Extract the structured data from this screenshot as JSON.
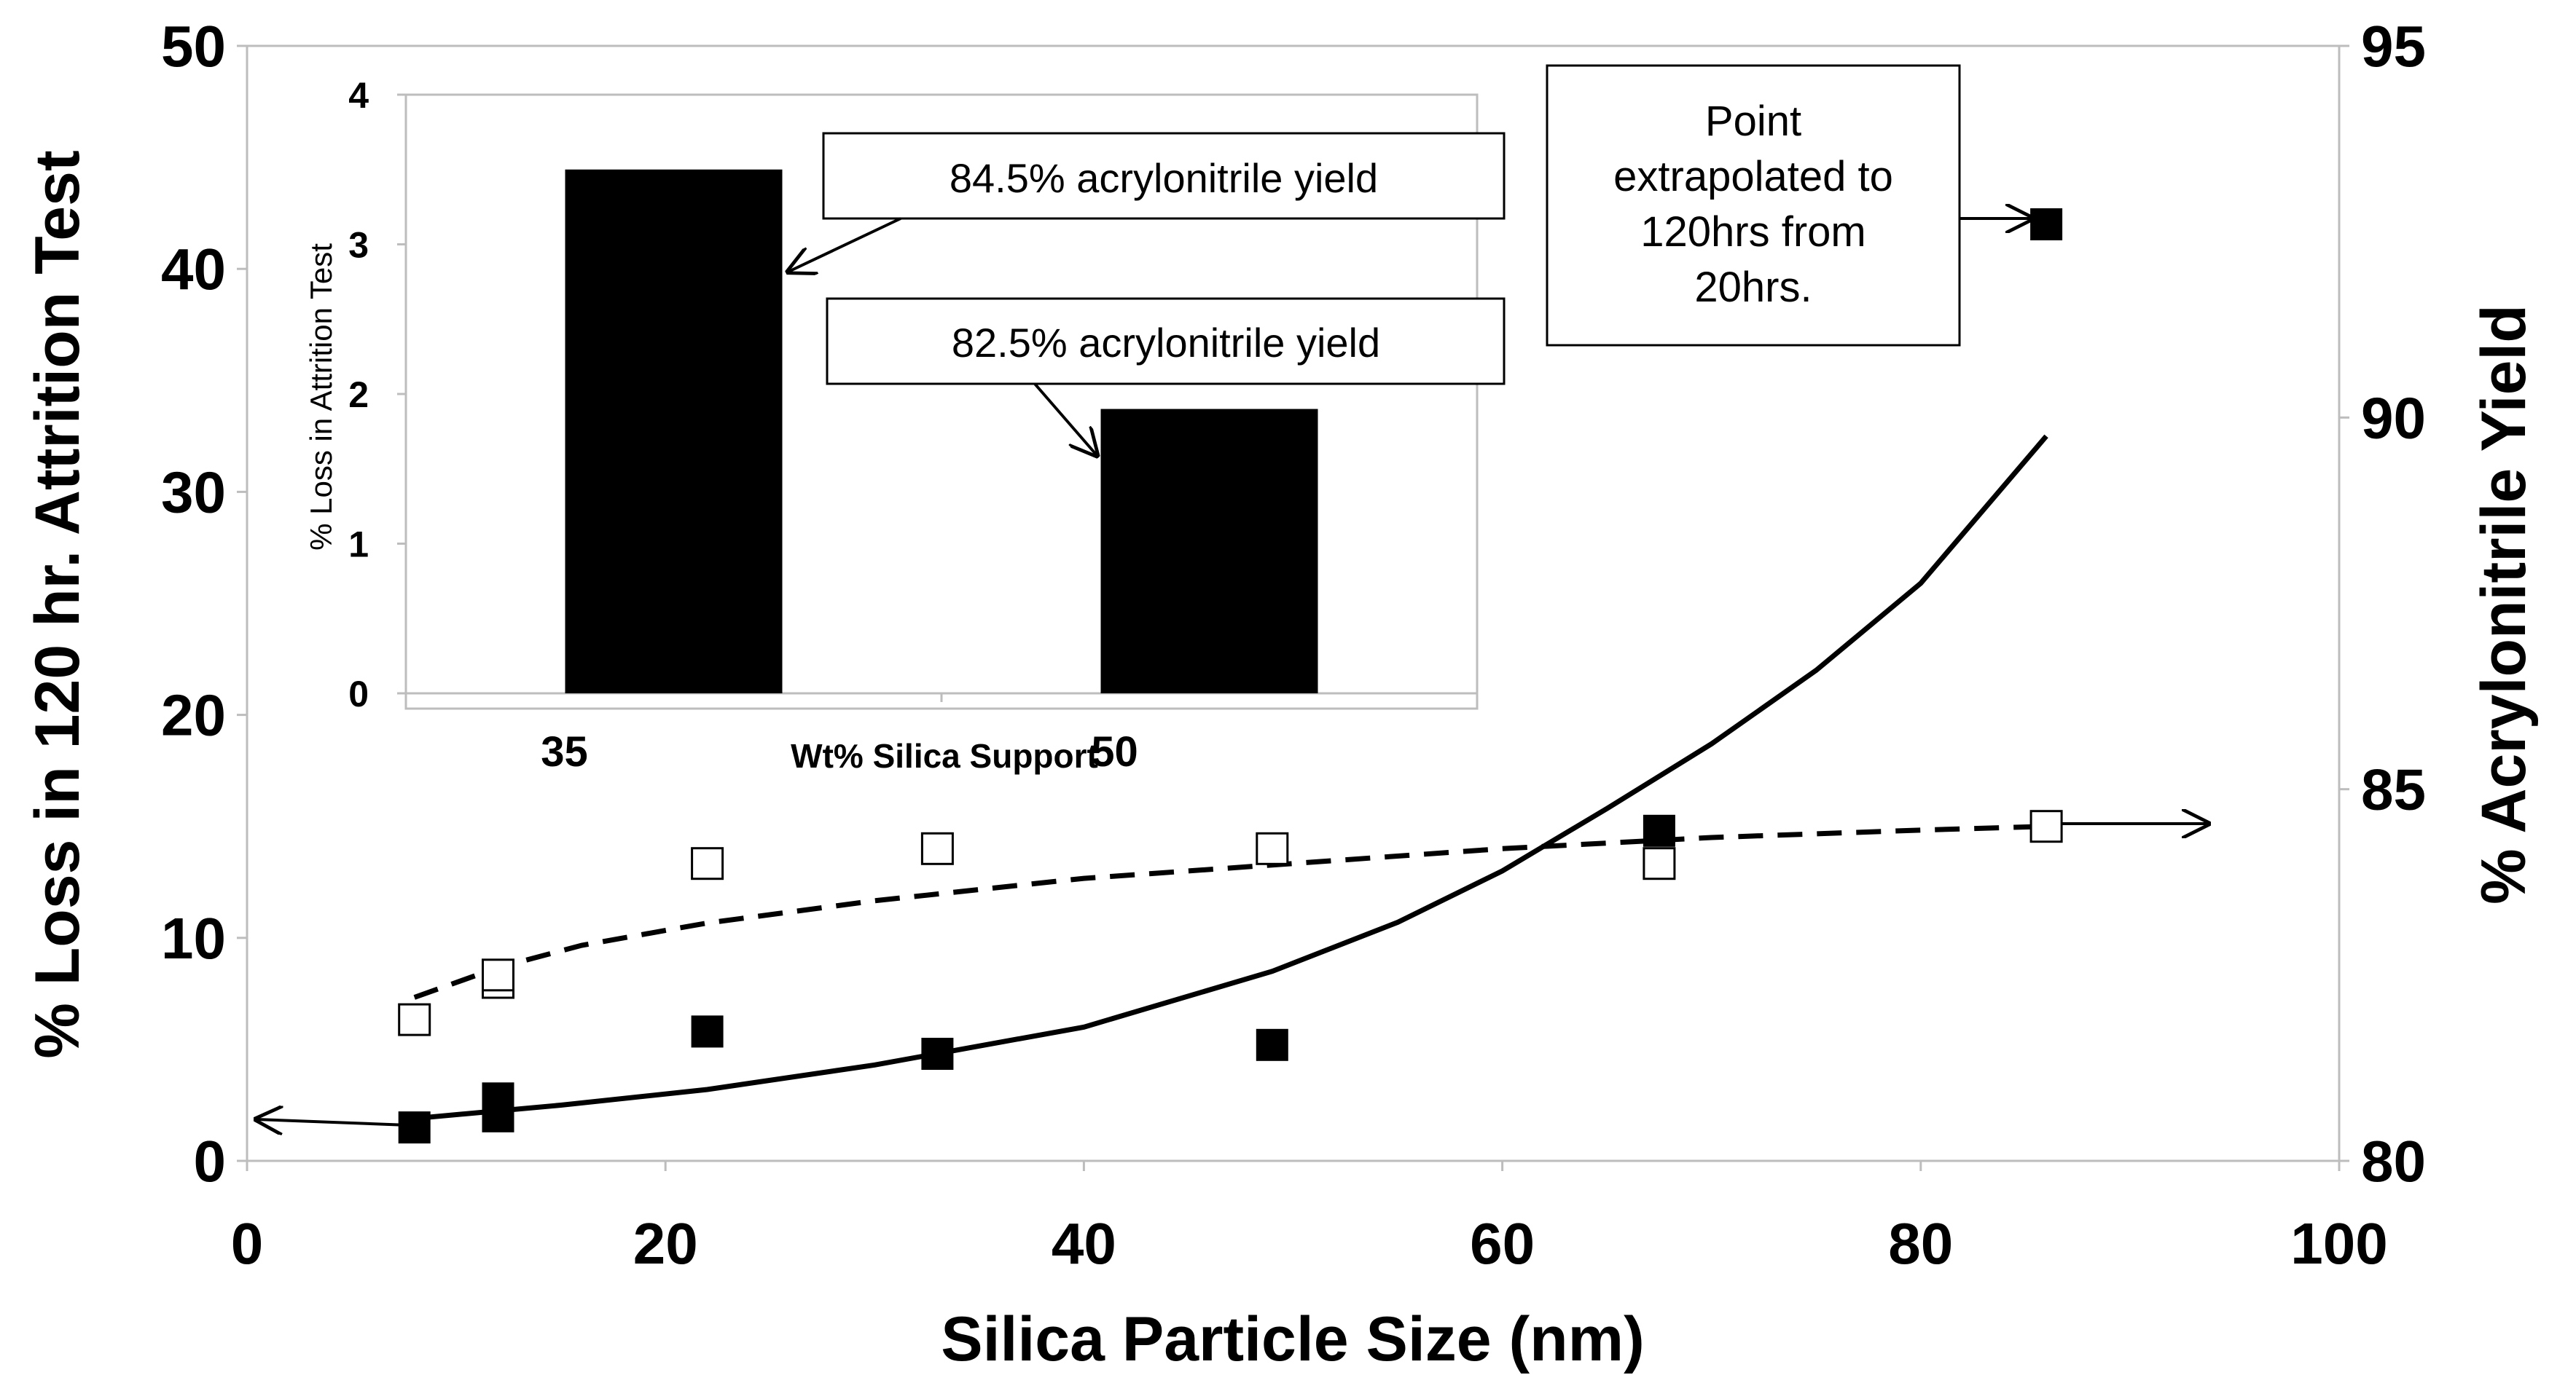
{
  "chart_data": [
    {
      "type": "scatter",
      "role": "main",
      "xlabel": "Silica Particle Size (nm)",
      "ylabel_left": "% Loss in 120 hr. Attrition Test",
      "ylabel_right": "% Acrylonitrile Yield",
      "xlim": [
        0,
        100
      ],
      "ylim_left": [
        0,
        50
      ],
      "ylim_right": [
        80,
        95
      ],
      "x_ticks": [
        0,
        20,
        40,
        60,
        80,
        100
      ],
      "y_ticks_left": [
        0,
        10,
        20,
        30,
        40,
        50
      ],
      "y_ticks_right": [
        80,
        85,
        90,
        95
      ],
      "series": [
        {
          "name": "% Loss in 120 hr. Attrition Test",
          "axis": "left",
          "marker": "filled-square",
          "x": [
            8,
            12,
            12,
            22,
            33,
            49,
            67.5,
            86
          ],
          "y": [
            1.5,
            2.0,
            2.8,
            5.8,
            4.8,
            5.2,
            14.8,
            42.0
          ]
        },
        {
          "name": "% Acrylonitrile Yield",
          "axis": "right",
          "marker": "open-square",
          "x": [
            8,
            12,
            12,
            22,
            33,
            49,
            67.5,
            86
          ],
          "y": [
            81.9,
            82.4,
            82.5,
            84.0,
            84.2,
            84.2,
            84.0,
            84.5
          ]
        }
      ],
      "trendlines": [
        {
          "name": "attrition-exponential-fit",
          "axis": "left",
          "style": "solid",
          "x": [
            8,
            15,
            22,
            30,
            40,
            49,
            55,
            60,
            65,
            70,
            75,
            80,
            86
          ],
          "y": [
            1.9,
            2.5,
            3.2,
            4.3,
            6.0,
            8.5,
            10.7,
            13.0,
            15.8,
            18.7,
            22.0,
            25.9,
            32.5
          ]
        },
        {
          "name": "yield-log-fit",
          "axis": "right",
          "style": "dashed",
          "x": [
            8,
            12,
            16,
            22,
            30,
            40,
            50,
            60,
            70,
            80,
            86
          ],
          "y": [
            82.2,
            82.6,
            82.9,
            83.2,
            83.5,
            83.8,
            84.0,
            84.2,
            84.35,
            84.45,
            84.5
          ]
        }
      ],
      "annotations": [
        {
          "id": "extrapolated",
          "text_lines": [
            "Point",
            "extrapolated to",
            "120hrs from",
            "20hrs."
          ],
          "target": {
            "x": 86,
            "y": 42,
            "axis": "left"
          }
        }
      ]
    },
    {
      "type": "bar",
      "role": "inset",
      "xlabel": "Wt% Silica Support",
      "ylabel": "% Loss in Attrition Test",
      "categories": [
        "35",
        "50"
      ],
      "values": [
        3.5,
        1.9
      ],
      "ylim": [
        0,
        4
      ],
      "y_ticks": [
        0,
        1,
        2,
        3,
        4
      ],
      "annotations": [
        {
          "id": "yield-35",
          "text": "84.5% acrylonitrile yield",
          "category": "35"
        },
        {
          "id": "yield-50",
          "text": "82.5% acrylonitrile yield",
          "category": "50"
        }
      ]
    }
  ]
}
